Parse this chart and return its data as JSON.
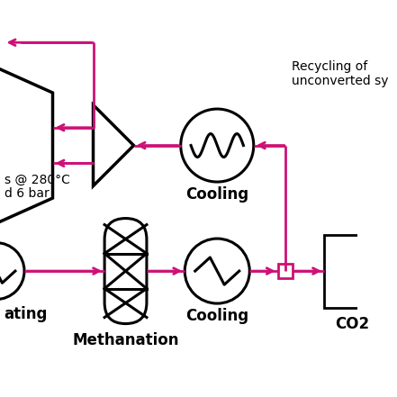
{
  "bg_color": "#ffffff",
  "flow_color": "#cc1177",
  "outline_color": "#000000",
  "lw_flow": 2.0,
  "lw_symbol": 2.2,
  "labels": {
    "cooling_top": "Cooling",
    "cooling_bottom": "Cooling",
    "methanation": "Methanation",
    "co2": "CO2",
    "recycling_line1": "Recycling of",
    "recycling_line2": "unconverted sy",
    "conditions_line1": "s @ 280°C",
    "conditions_line2": "d 6 bar",
    "heating": "ating"
  },
  "figsize": [
    4.41,
    4.41
  ],
  "dpi": 100
}
